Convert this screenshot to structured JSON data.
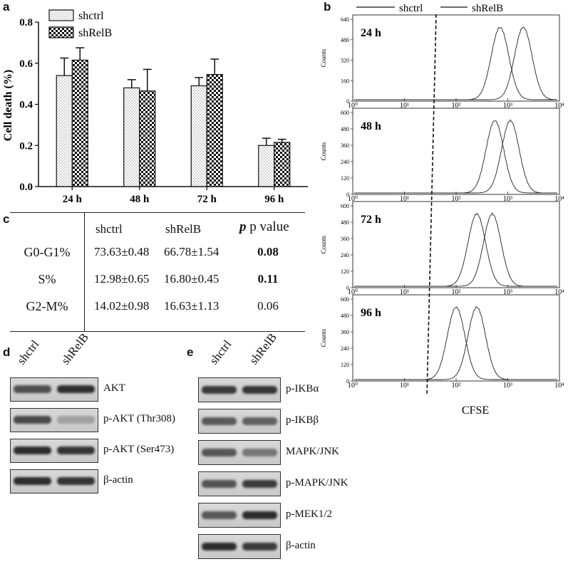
{
  "panel_a": {
    "letter": "a",
    "chart_data": {
      "type": "bar",
      "categories": [
        "24 h",
        "48 h",
        "72 h",
        "96 h"
      ],
      "series": [
        {
          "name": "shctrl",
          "values": [
            0.54,
            0.48,
            0.49,
            0.2
          ],
          "errors": [
            0.085,
            0.04,
            0.04,
            0.035
          ]
        },
        {
          "name": "shRelB",
          "values": [
            0.615,
            0.465,
            0.545,
            0.215
          ],
          "errors": [
            0.06,
            0.105,
            0.075,
            0.015
          ]
        }
      ],
      "ylabel": "Cell death (%)",
      "ylim": [
        0,
        0.8
      ],
      "yticks": [
        "0.0",
        "0.2",
        "0.4",
        "0.6",
        "0.8"
      ],
      "legend_position": "top-left"
    }
  },
  "panel_b": {
    "letter": "b",
    "legend": [
      "shctrl",
      "shRelB"
    ],
    "xlabel": "CFSE",
    "ylabel": "Counts",
    "x_ticks": [
      "10⁰",
      "10¹",
      "10²",
      "10³",
      "10⁴"
    ],
    "chart_data": [
      {
        "type": "area",
        "label": "24 h",
        "yticks": [
          "0",
          "160",
          "320",
          "480",
          "640"
        ],
        "peaks_log10": [
          2.85,
          3.3
        ]
      },
      {
        "type": "area",
        "label": "48 h",
        "yticks": [
          "0",
          "120",
          "240",
          "360",
          "480",
          "600"
        ],
        "peaks_log10": [
          2.75,
          3.05
        ]
      },
      {
        "type": "area",
        "label": "72 h",
        "yticks": [
          "0",
          "120",
          "240",
          "360",
          "480",
          "600"
        ],
        "peaks_log10": [
          2.4,
          2.7
        ]
      },
      {
        "type": "area",
        "label": "96 h",
        "yticks": [
          "0",
          "120",
          "240",
          "360",
          "480",
          "600"
        ],
        "peaks_log10": [
          2.0,
          2.4
        ]
      }
    ]
  },
  "panel_c": {
    "letter": "c",
    "headers": [
      "",
      "shctrl",
      "shRelB",
      "p value"
    ],
    "rows": [
      [
        "G0-G1%",
        "73.63±0.48",
        "66.78±1.54",
        "0.08"
      ],
      [
        "S%",
        "12.98±0.65",
        "16.80±0.45",
        "0.11"
      ],
      [
        "G2-M%",
        "14.02±0.98",
        "16.63±1.13",
        "0.06"
      ]
    ]
  },
  "panel_d": {
    "letter": "d",
    "lanes": [
      "shctrl",
      "shRelB"
    ],
    "blots": [
      "AKT",
      "p-AKT (Thr308)",
      "p-AKT (Ser473)",
      "β-actin"
    ]
  },
  "panel_e": {
    "letter": "e",
    "lanes": [
      "shctrl",
      "shRelB"
    ],
    "blots": [
      "p-IKBα",
      "p-IKBβ",
      "MAPK/JNK",
      "p-MAPK/JNK",
      "p-MEK1/2",
      "β-actin"
    ]
  },
  "colors": {
    "ink": "#1a1a1a",
    "band": "#2b2b2b",
    "blot_bg": "#cfcfcf"
  }
}
